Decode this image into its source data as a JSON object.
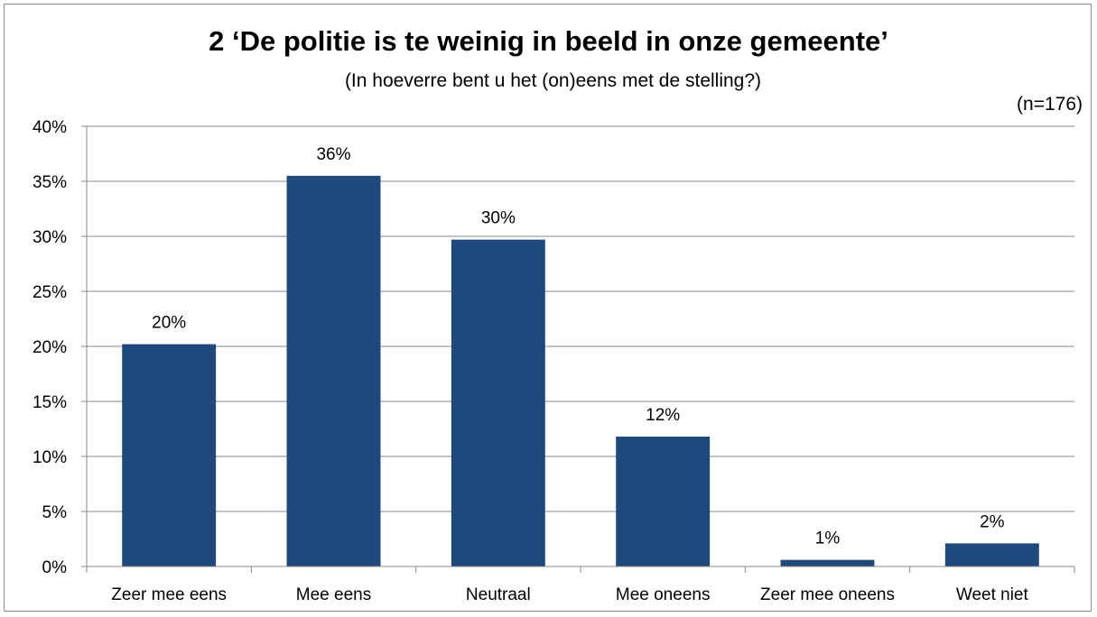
{
  "chart_data": {
    "type": "bar",
    "title": "2 ‘De politie is te weinig in beeld in onze gemeente’",
    "subtitle": "(In hoeverre bent u het (on)eens met de stelling?)",
    "note": "(n=176)",
    "categories": [
      "Zeer mee eens",
      "Mee eens",
      "Neutraal",
      "Mee oneens",
      "Zeer mee oneens",
      "Weet niet"
    ],
    "values": [
      20.2,
      35.5,
      29.7,
      11.8,
      0.6,
      2.1
    ],
    "data_labels": [
      "20%",
      "36%",
      "30%",
      "12%",
      "1%",
      "2%"
    ],
    "ylim": [
      0,
      40
    ],
    "yticks": [
      0,
      5,
      10,
      15,
      20,
      25,
      30,
      35,
      40
    ],
    "ytick_labels": [
      "0%",
      "5%",
      "10%",
      "15%",
      "20%",
      "25%",
      "30%",
      "35%",
      "40%"
    ],
    "grid": true,
    "bar_color": "#1f497d",
    "grid_color": "#888888"
  }
}
